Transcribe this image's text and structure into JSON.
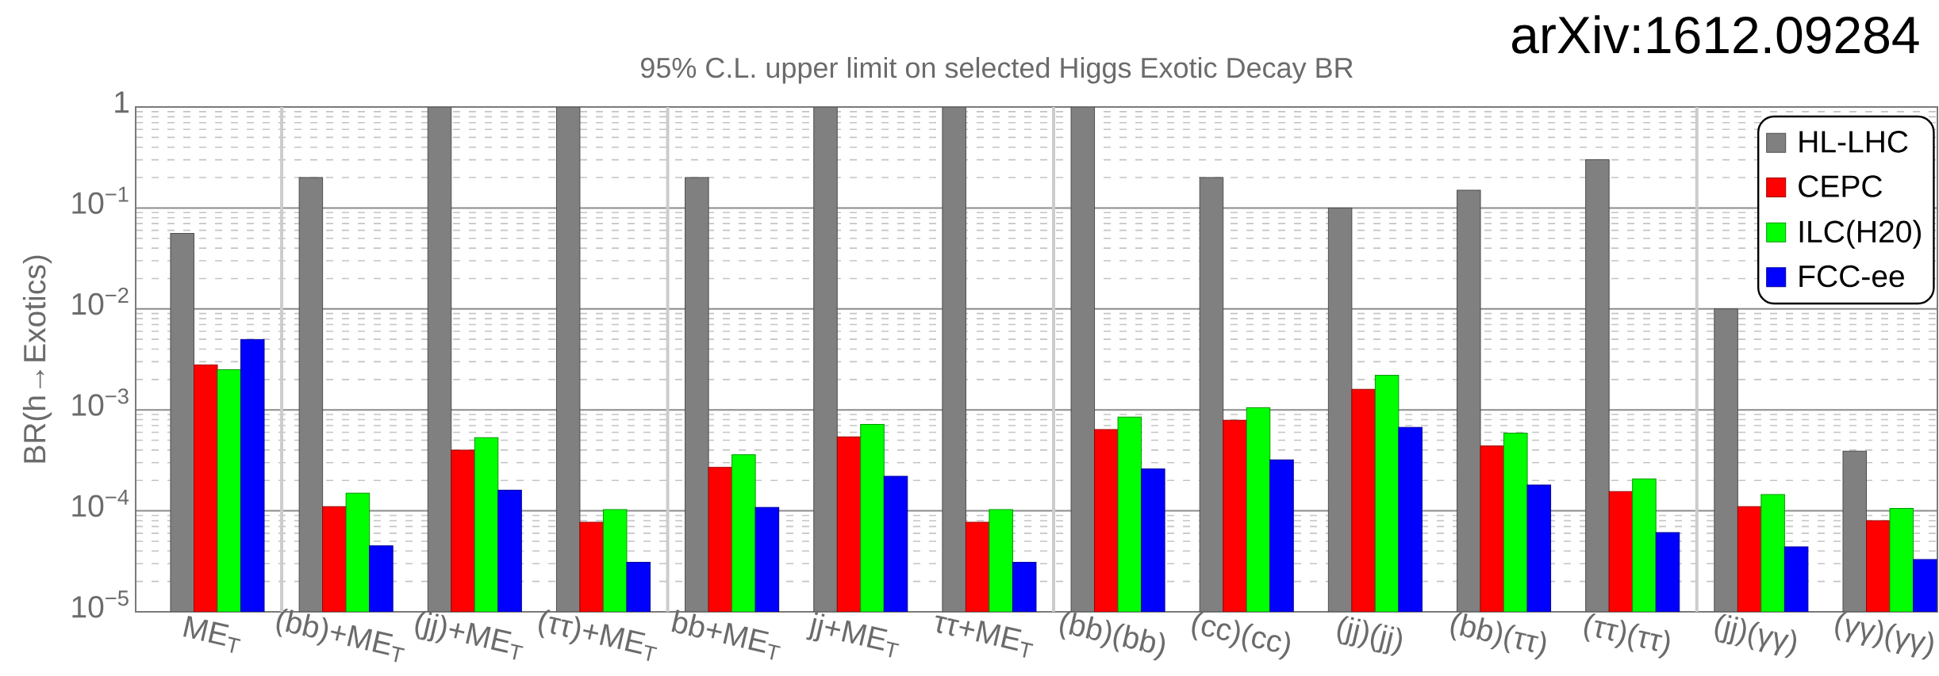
{
  "chart_data": {
    "type": "bar",
    "title": "95% C.L. upper limit on selected Higgs Exotic Decay BR",
    "ylabel": "BR(h→Exotics)",
    "annotations": [
      "arXiv:1612.09284"
    ],
    "categories": [
      "ME$_{T}$",
      "(bb)+ME$_{T}$",
      "(jj)+ME$_{T}$",
      "(ττ)+ME$_{T}$",
      "bb+ME$_{T}$",
      "jj+ME$_{T}$",
      "ττ+ME$_{T}$",
      "(bb)(bb)",
      "(cc)(cc)",
      "(jj)(jj)",
      "(bb)(ττ)",
      "(ττ)(ττ)",
      "(jj)(γγ)",
      "(γγ)(γγ)"
    ],
    "series": [
      {
        "name": "HL-LHC",
        "color": "#808080",
        "values": [
          0.056,
          0.2,
          1,
          1,
          0.2,
          1,
          1,
          1,
          0.2,
          0.1,
          0.15,
          0.3,
          0.01,
          0.00039
        ]
      },
      {
        "name": "CEPC",
        "color": "#ff0000",
        "values": [
          0.0028,
          0.00011,
          0.0004,
          7.7e-05,
          0.00027,
          0.00054,
          7.7e-05,
          0.00064,
          0.00079,
          0.0016,
          0.00044,
          0.000155,
          0.00011,
          8e-05
        ]
      },
      {
        "name": "ILC(H20)",
        "color": "#00ff00",
        "values": [
          0.0025,
          0.00015,
          0.00053,
          0.000103,
          0.00036,
          0.00072,
          0.000103,
          0.00085,
          0.00105,
          0.0022,
          0.00059,
          0.000207,
          0.000145,
          0.000106
        ]
      },
      {
        "name": "FCC-ee",
        "color": "#0000ff",
        "values": [
          0.005,
          4.5e-05,
          0.00016,
          3.1e-05,
          0.000108,
          0.00022,
          3.1e-05,
          0.00026,
          0.00032,
          0.00067,
          0.00018,
          6.1e-05,
          4.4e-05,
          3.3e-05
        ]
      }
    ],
    "log": true,
    "ylim": [
      1e-05,
      1
    ],
    "yticks": [
      {
        "value": 1e-05,
        "label": "10$^{−5}$"
      },
      {
        "value": 0.0001,
        "label": "10$^{−4}$"
      },
      {
        "value": 0.001,
        "label": "10$^{−3}$"
      },
      {
        "value": 0.01,
        "label": "10$^{−2}$"
      },
      {
        "value": 0.1,
        "label": "10$^{−1}$"
      },
      1
    ],
    "grid": "y",
    "legend": "top right"
  }
}
